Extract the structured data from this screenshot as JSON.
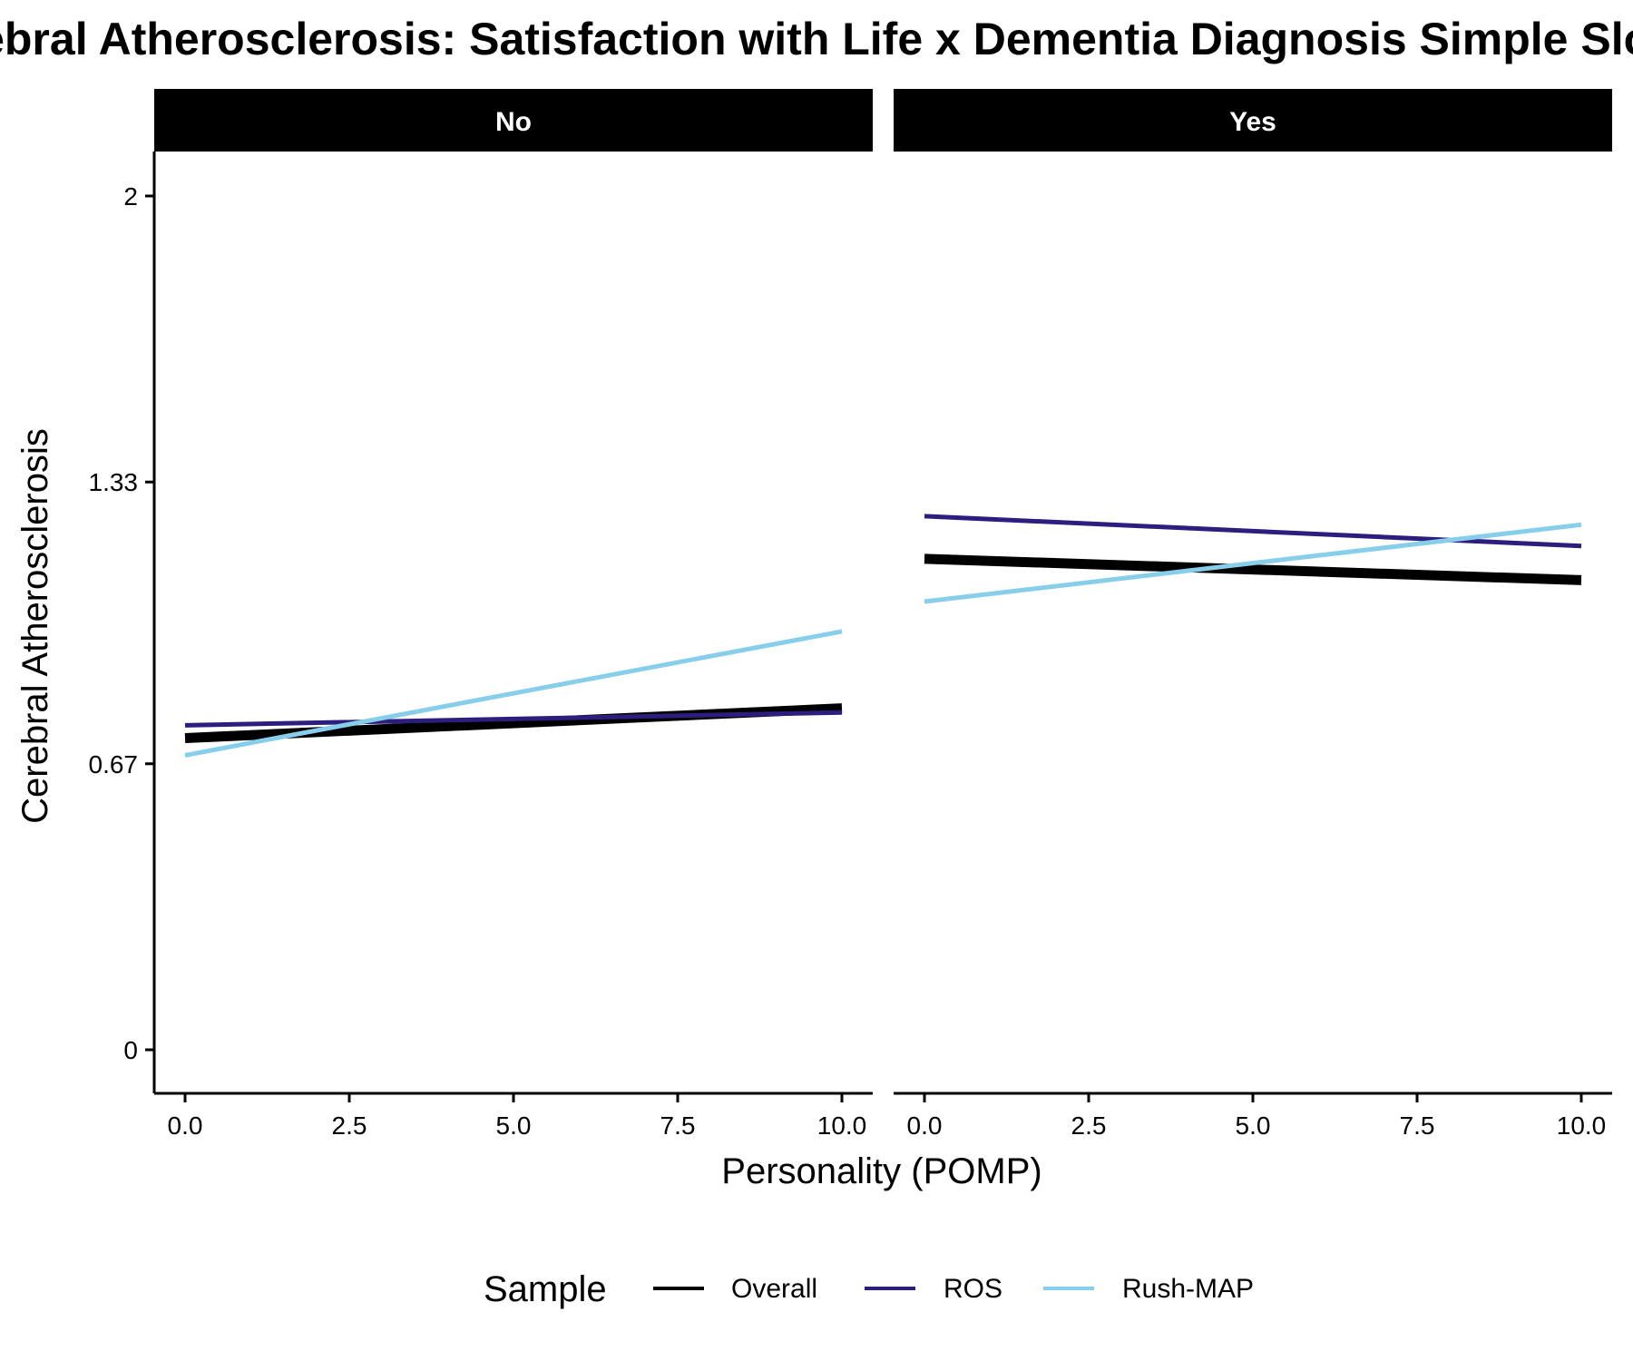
{
  "chart_data": {
    "type": "line",
    "title": "Cerebral Atherosclerosis: Satisfaction with Life x Dementia Diagnosis Simple Slopes",
    "xlabel": "Personality (POMP)",
    "ylabel": "Cerebral Atherosclerosis",
    "xlim": [
      0,
      10
    ],
    "ylim": [
      0,
      2
    ],
    "x_ticks": [
      "0.0",
      "2.5",
      "5.0",
      "7.5",
      "10.0"
    ],
    "y_ticks": [
      "0",
      "0.67",
      "1.33",
      "2"
    ],
    "grid": false,
    "legend": {
      "title": "Sample",
      "position": "bottom",
      "entries": [
        "Overall",
        "ROS",
        "Rush-MAP"
      ]
    },
    "panels": [
      {
        "label": "No",
        "series": [
          {
            "name": "Overall",
            "color": "#000000",
            "width": "thick",
            "x": [
              0,
              10
            ],
            "y": [
              0.73,
              0.8
            ]
          },
          {
            "name": "ROS",
            "color": "#2d1e7e",
            "width": "normal",
            "x": [
              0,
              10
            ],
            "y": [
              0.76,
              0.79
            ]
          },
          {
            "name": "Rush-MAP",
            "color": "#87ceeb",
            "width": "normal",
            "x": [
              0,
              10
            ],
            "y": [
              0.69,
              0.98
            ]
          }
        ]
      },
      {
        "label": "Yes",
        "series": [
          {
            "name": "Overall",
            "color": "#000000",
            "width": "thick",
            "x": [
              0,
              10
            ],
            "y": [
              1.15,
              1.1
            ]
          },
          {
            "name": "ROS",
            "color": "#2d1e7e",
            "width": "normal",
            "x": [
              0,
              10
            ],
            "y": [
              1.25,
              1.18
            ]
          },
          {
            "name": "Rush-MAP",
            "color": "#87ceeb",
            "width": "normal",
            "x": [
              0,
              10
            ],
            "y": [
              1.05,
              1.23
            ]
          }
        ]
      }
    ]
  }
}
